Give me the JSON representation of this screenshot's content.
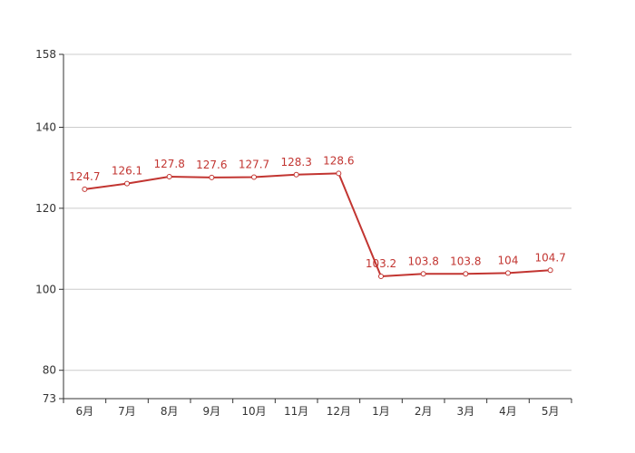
{
  "chart_data": {
    "type": "line",
    "title": "",
    "xlabel": "",
    "ylabel": "",
    "categories": [
      "6月",
      "7月",
      "8月",
      "9月",
      "10月",
      "11月",
      "12月",
      "1月",
      "2月",
      "3月",
      "4月",
      "5月"
    ],
    "series": [
      {
        "values": [
          124.7,
          126.1,
          127.8,
          127.6,
          127.7,
          128.3,
          128.6,
          103.2,
          103.8,
          103.8,
          104,
          104.7
        ],
        "labels": [
          "124.7",
          "126.1",
          "127.8",
          "127.6",
          "127.7",
          "128.3",
          "128.6",
          "103.2",
          "103.8",
          "103.8",
          "104",
          "104.7"
        ],
        "color": "#c23531"
      }
    ],
    "ylim": [
      73,
      158
    ],
    "yticks": [
      73,
      80,
      100,
      120,
      140,
      158
    ],
    "ytick_labels": [
      "73",
      "80",
      "100",
      "120",
      "140",
      "158"
    ],
    "grid": true,
    "legend": "none",
    "colors": {
      "line": "#c23531",
      "grid": "#cccccc",
      "axis": "#333333",
      "text": "#333333"
    }
  }
}
